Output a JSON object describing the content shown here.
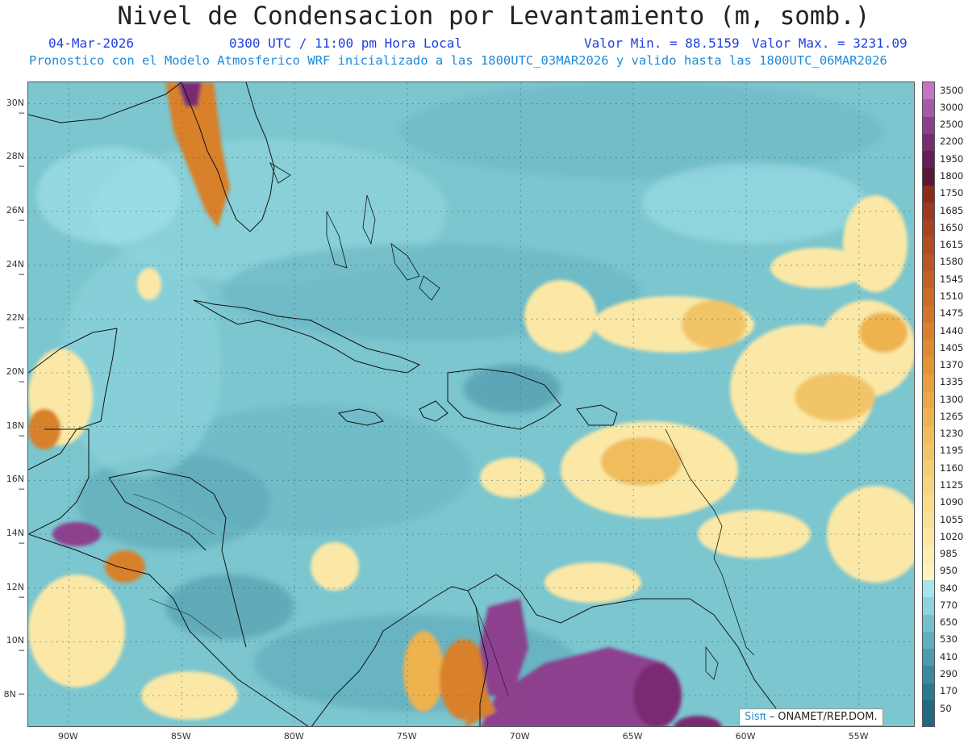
{
  "header": {
    "title": "Nivel de Condensacion por Levantamiento (m, somb.)",
    "date": "04-Mar-2026",
    "time": "0300 UTC / 11:00 pm Hora Local",
    "min_value": "Valor Min. = 88.5159",
    "max_value": "Valor Max. = 3231.09",
    "subtitle": "Pronostico con el Modelo Atmosferico WRF inicializado a las 1800UTC_03MAR2026 y valido hasta las  1800UTC_06MAR2026"
  },
  "map": {
    "lat_labels": [
      "30N",
      "28N",
      "26N",
      "24N",
      "22N",
      "20N",
      "18N",
      "16N",
      "14N",
      "12N",
      "10N",
      "8N"
    ],
    "lon_labels": [
      "90W",
      "85W",
      "80W",
      "75W",
      "70W",
      "65W",
      "60W",
      "55W"
    ],
    "lat_range": [
      6.8,
      30.8
    ],
    "lon_range": [
      -91.8,
      -52.5
    ]
  },
  "colorbar": {
    "labels": [
      "3500",
      "3000",
      "2500",
      "2200",
      "1950",
      "1800",
      "1750",
      "1685",
      "1650",
      "1615",
      "1580",
      "1545",
      "1510",
      "1475",
      "1440",
      "1405",
      "1370",
      "1335",
      "1300",
      "1265",
      "1230",
      "1195",
      "1160",
      "1125",
      "1090",
      "1055",
      "1020",
      "985",
      "950",
      "840",
      "770",
      "650",
      "530",
      "410",
      "290",
      "170",
      "50"
    ],
    "colors": [
      "#c873c1",
      "#a45aa6",
      "#8c3f8e",
      "#7a2c72",
      "#651e58",
      "#5a1838",
      "#8a2c1c",
      "#9a3a1e",
      "#a44420",
      "#ae4e22",
      "#b85824",
      "#c06226",
      "#c86c28",
      "#d0762a",
      "#d8802c",
      "#de8a30",
      "#e29436",
      "#e69e3e",
      "#eaa846",
      "#eeb250",
      "#f0bc5c",
      "#f2c468",
      "#f4cc74",
      "#f6d480",
      "#f8dc8c",
      "#f9e298",
      "#fae8a4",
      "#fbeeb0",
      "#fcf4bc",
      "#a8e4ec",
      "#8ed2dc",
      "#74c0cc",
      "#5eaebe",
      "#4a9cae",
      "#3a8a9e",
      "#2c7890",
      "#226880"
    ]
  },
  "credit": {
    "brand": "Sisπ",
    "org": "– ONAMET/REP.DOM."
  }
}
